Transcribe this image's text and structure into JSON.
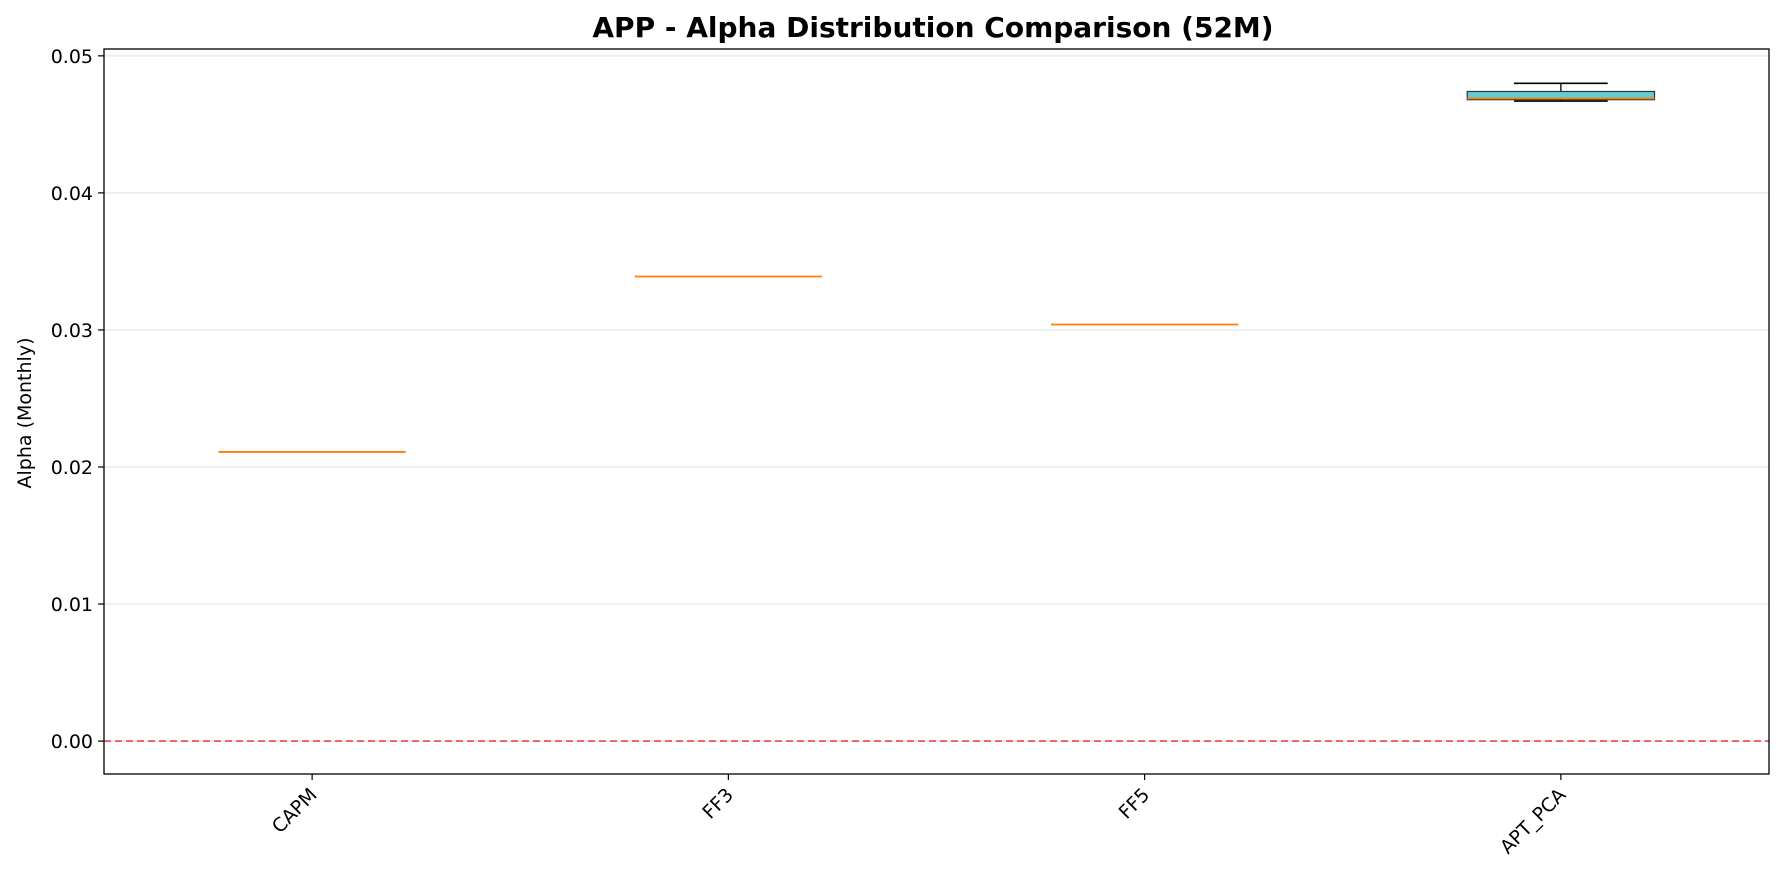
{
  "chart_data": {
    "type": "box",
    "title": "APP - Alpha Distribution Comparison (52M)",
    "xlabel": "",
    "ylabel": "Alpha (Monthly)",
    "ylim": [
      -0.0024,
      0.0505
    ],
    "yticks": [
      0.0,
      0.01,
      0.02,
      0.03,
      0.04,
      0.05
    ],
    "ytick_labels": [
      "0.00",
      "0.01",
      "0.02",
      "0.03",
      "0.04",
      "0.05"
    ],
    "grid": "y",
    "reference_line": {
      "y": 0.0,
      "color": "#e8474c",
      "style": "dashed"
    },
    "categories": [
      "CAPM",
      "FF3",
      "FF5",
      "APT_PCA"
    ],
    "boxes": [
      {
        "category": "CAPM",
        "whislo": 0.0211,
        "q1": 0.0211,
        "median": 0.0211,
        "q3": 0.0211,
        "whishi": 0.0211
      },
      {
        "category": "FF3",
        "whislo": 0.0339,
        "q1": 0.0339,
        "median": 0.0339,
        "q3": 0.0339,
        "whishi": 0.0339
      },
      {
        "category": "FF5",
        "whislo": 0.0304,
        "q1": 0.0304,
        "median": 0.0304,
        "q3": 0.0304,
        "whishi": 0.0304
      },
      {
        "category": "APT_PCA",
        "whislo": 0.0467,
        "q1": 0.0468,
        "median": 0.0469,
        "q3": 0.0474,
        "whishi": 0.048
      }
    ],
    "colors": {
      "box_fill": [
        "#8fa3c7",
        "#e8a07e",
        "#8fc7a3",
        "#5fcfd4"
      ],
      "median": "#ff7f0e",
      "whisker": "#000000",
      "grid": "#e6e6e6",
      "axis": "#000000"
    }
  }
}
